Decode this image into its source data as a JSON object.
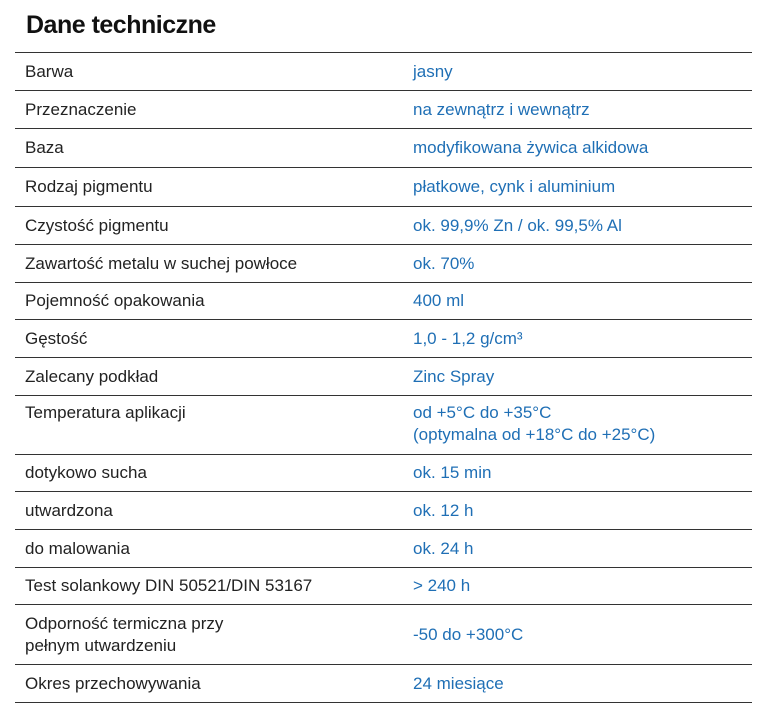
{
  "title": "Dane techniczne",
  "table": {
    "rows": [
      [
        "Barwa",
        "jasny"
      ],
      [
        "Przeznaczenie",
        "na zewnątrz i wewnątrz"
      ],
      [
        "Baza",
        "modyfikowana żywica alkidowa"
      ],
      [
        "Rodzaj pigmentu",
        "płatkowe, cynk i aluminium"
      ],
      [
        "Czystość pigmentu",
        "ok. 99,9% Zn / ok. 99,5% Al"
      ],
      [
        "Zawartość metalu w suchej powłoce",
        "ok. 70%"
      ],
      [
        "Pojemność opakowania",
        "400 ml"
      ],
      [
        "Gęstość",
        "1,0 - 1,2 g/cm³"
      ],
      [
        "Zalecany podkład",
        "Zinc Spray"
      ],
      [
        "Temperatura aplikacji",
        [
          "od +5°C do +35°C",
          "(optymalna od +18°C do +25°C)"
        ]
      ],
      [
        "dotykowo sucha",
        "ok. 15 min"
      ],
      [
        "utwardzona",
        "ok. 12 h"
      ],
      [
        "do malowania",
        "ok. 24 h"
      ],
      [
        "Test solankowy DIN 50521/DIN 53167",
        "> 240 h"
      ],
      [
        [
          "Odporność termiczna przy",
          "pełnym utwardzeniu"
        ],
        "-50 do +300°C"
      ],
      [
        "Okres przechowywania",
        "24 miesiące"
      ]
    ]
  }
}
